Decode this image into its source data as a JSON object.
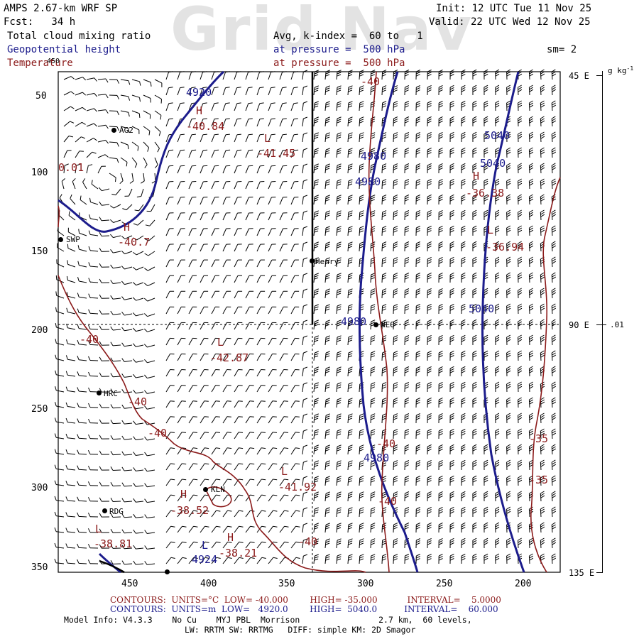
{
  "watermark": "Grid Nav",
  "header": {
    "model": "AMPS 2.67-km WRF SP",
    "forecast": "Fcst:   34 h",
    "init": "Init: 12 UTC Tue 11 Nov 25",
    "valid": "Valid: 22 UTC Wed 12 Nov 25",
    "field1": "Total cloud mixing ratio",
    "field1_level": "Avg, k-index =  60 to   1",
    "field2": "Geopotential height",
    "field2_level": "at pressure =  500 hPa",
    "field3": "Temperature",
    "field3_level": "at pressure =  500 hPa",
    "smoothing": "sm= 2"
  },
  "colors": {
    "height": "#1c1c8c",
    "temperature": "#8b1a1a",
    "text": "#000000"
  },
  "axes": {
    "left_y_ticks": [
      "50",
      "100",
      "150",
      "200",
      "250",
      "300",
      "350"
    ],
    "left_y_top": "450",
    "x_ticks": [
      "450",
      "400",
      "350",
      "300",
      "250",
      "200"
    ],
    "right_ticks": [
      "45 E",
      "90 E",
      "135 E"
    ],
    "colorbar_unit": "g kg",
    "colorbar_unit_sup": "-1",
    "colorbar_label": ".01"
  },
  "stations": [
    {
      "id": "AG2",
      "label": "AG2"
    },
    {
      "id": "SWP",
      "label": "SWP"
    },
    {
      "id": "Henry",
      "label": "Henry"
    },
    {
      "id": "NEO",
      "label": "NEO"
    },
    {
      "id": "HRC",
      "label": "HRC"
    },
    {
      "id": "KLN",
      "label": "KLN"
    },
    {
      "id": "RDG",
      "label": "RDG"
    }
  ],
  "height_labels": [
    "4920",
    "4980",
    "4980",
    "5040",
    "5040",
    "5040",
    "4980",
    "4980",
    "4924"
  ],
  "temp_labels": [
    "-40",
    "-40",
    "-40",
    "-40",
    "-40",
    "-40",
    "-40",
    "-35",
    "-35",
    "0.01"
  ],
  "extrema": [
    {
      "mark": "H",
      "value": "-40.84",
      "field": "temperature"
    },
    {
      "mark": "L",
      "value": "-41.45",
      "field": "temperature"
    },
    {
      "mark": "H",
      "value": "-40.7",
      "field": "temperature"
    },
    {
      "mark": "H",
      "value": "-36.38",
      "field": "temperature"
    },
    {
      "mark": "L",
      "value": "-36.94",
      "field": "temperature"
    },
    {
      "mark": "L",
      "value": "-42.87",
      "field": "temperature"
    },
    {
      "mark": "L",
      "value": "-41.92",
      "field": "temperature"
    },
    {
      "mark": "H",
      "value": "-38.52",
      "field": "temperature"
    },
    {
      "mark": "L",
      "value": "-38.81",
      "field": "temperature"
    },
    {
      "mark": "H",
      "value": "-38.21",
      "field": "temperature"
    },
    {
      "mark": "L",
      "value": "",
      "field": "height"
    }
  ],
  "footer": {
    "temp_contours": "CONTOURS:  UNITS=°C  LOW= -40.000        HIGH= -35.000           INTERVAL=    5.0000",
    "height_contours": "CONTOURS:  UNITS=m  LOW=   4920.0        HIGH=  5040.0          INTERVAL=    60.000",
    "model_info": "Model Info: V4.3.3    No Cu    MYJ PBL  Morrison                2.7 km,  60 levels,",
    "model_info2": "LW: RRTM SW: RRTMG   DIFF: simple KM: 2D Smagor"
  }
}
